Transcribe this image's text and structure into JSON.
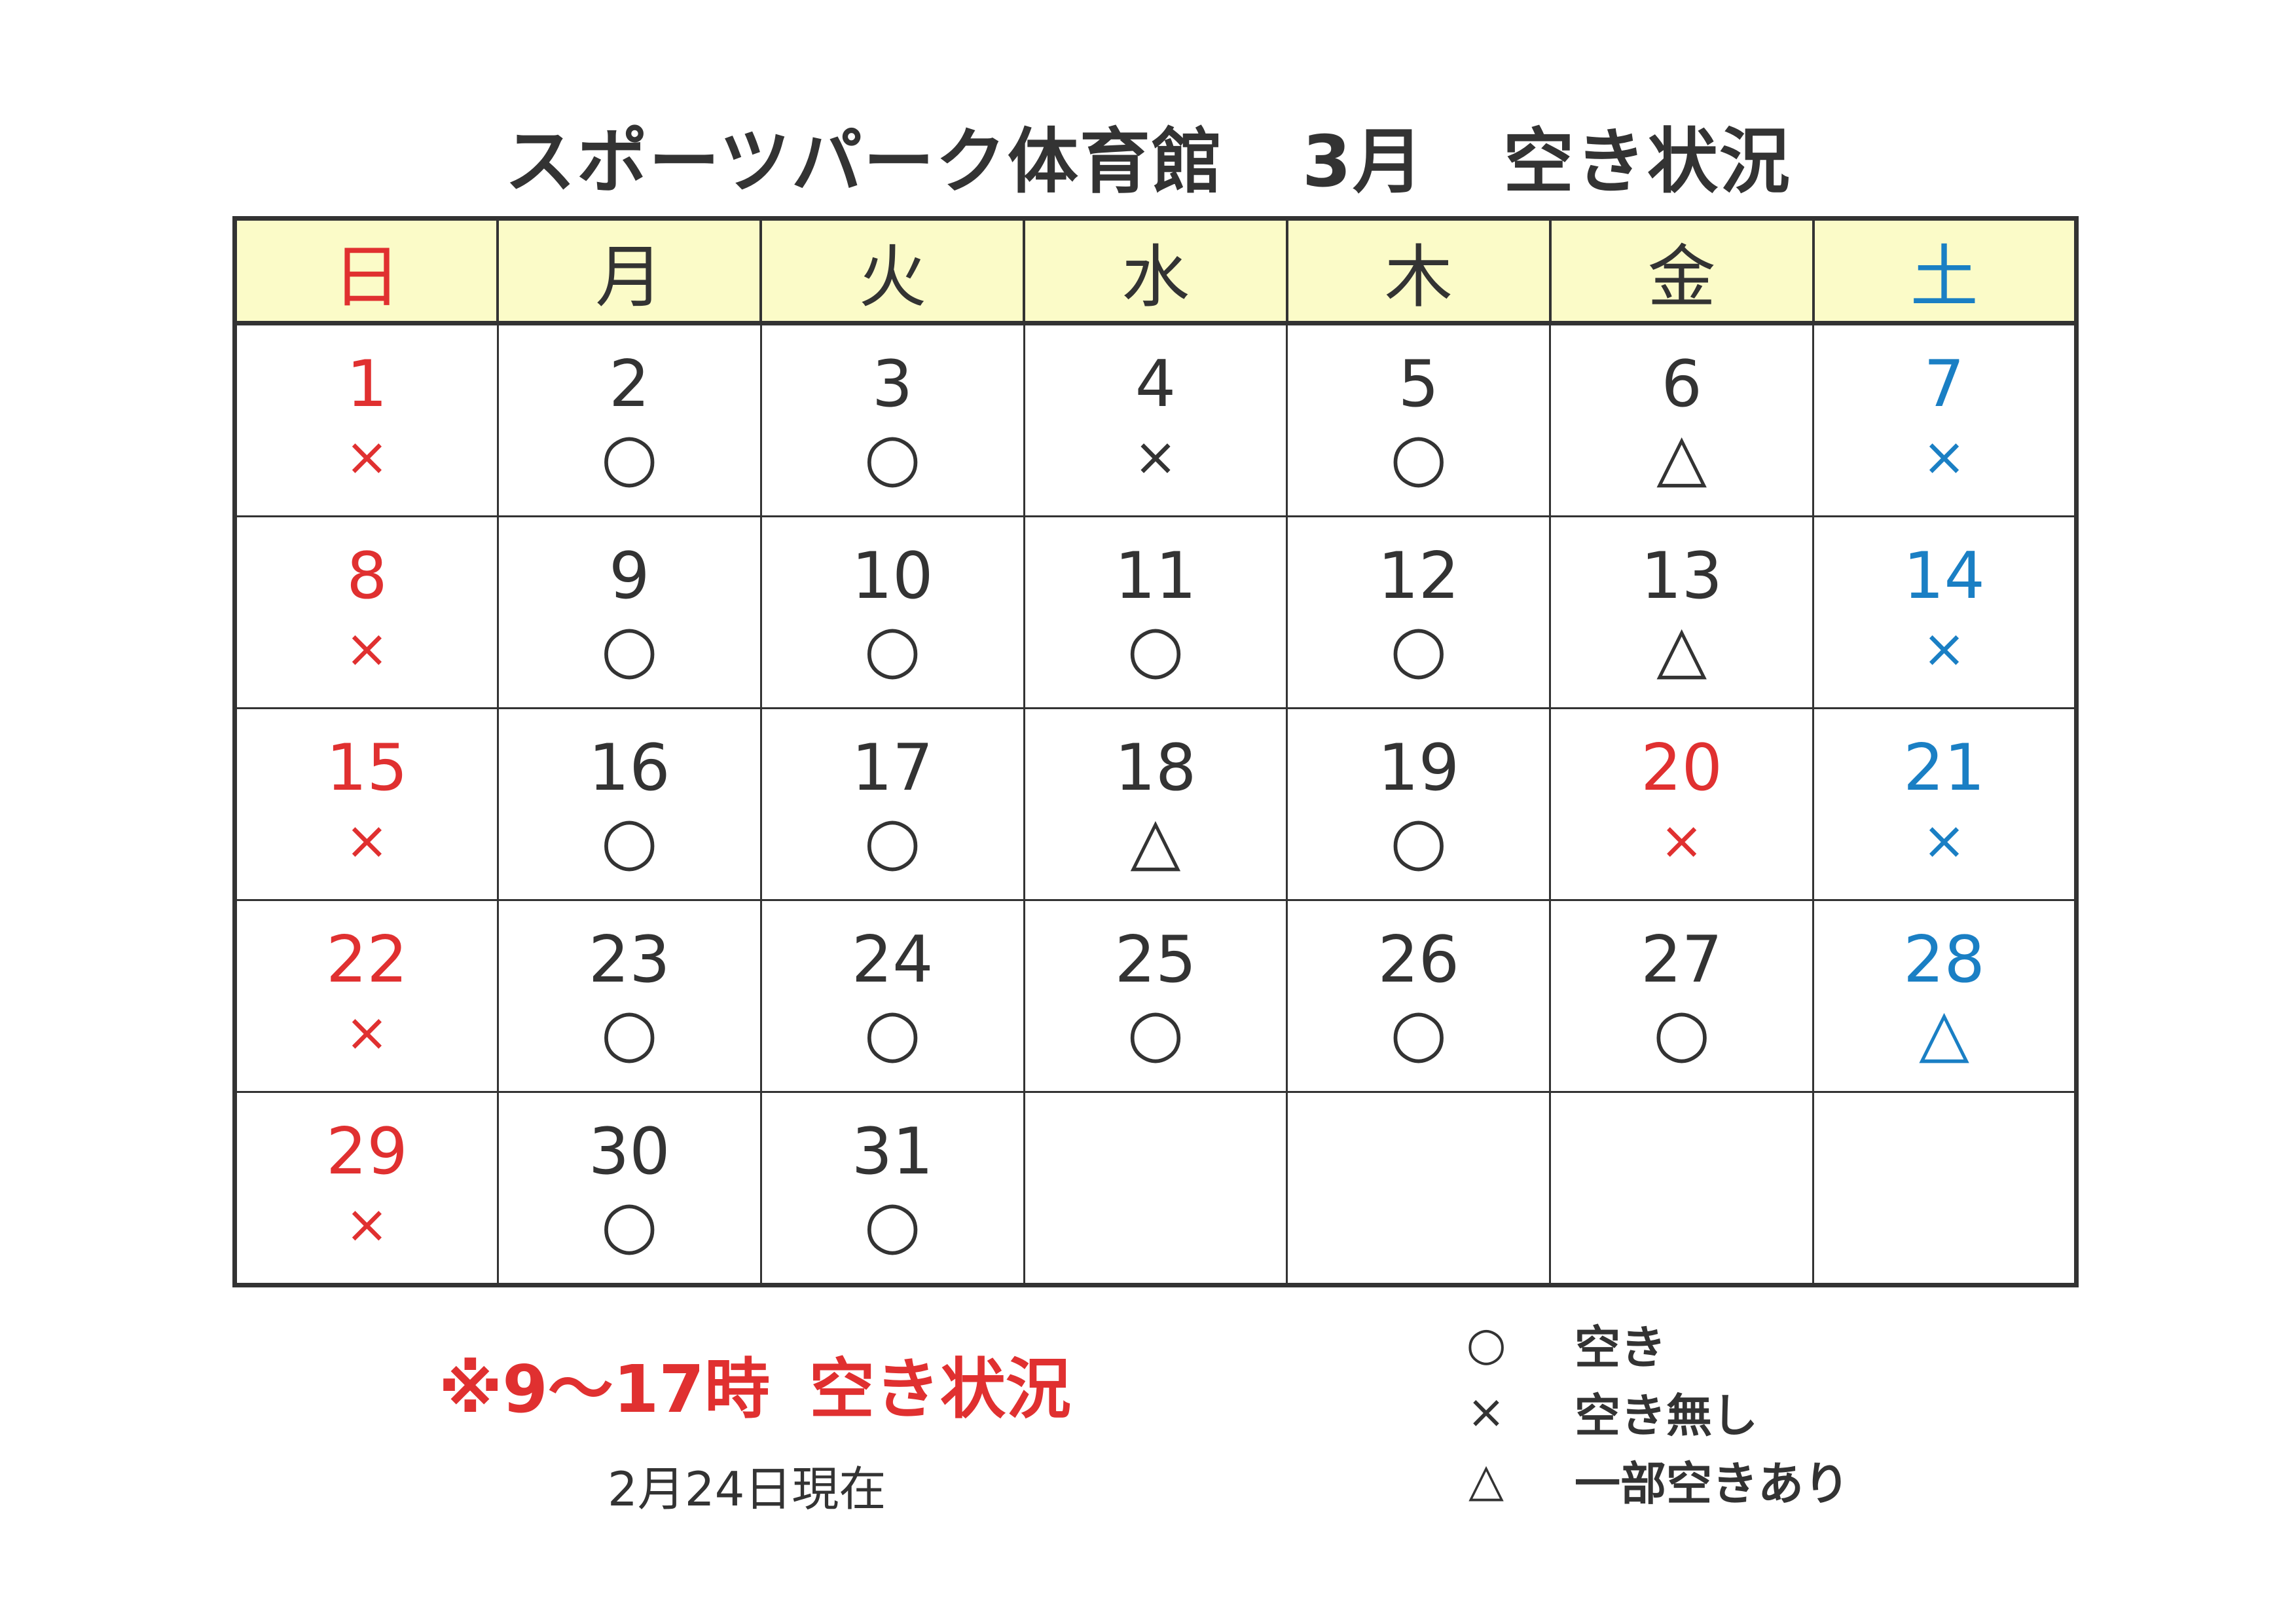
{
  "title": {
    "facility": "スポーツパーク体育館",
    "month": "3月",
    "label": "空き状況"
  },
  "colors": {
    "sunday": "#e03030",
    "saturday": "#1a7fc4",
    "weekday": "#333333",
    "header_bg": "#fbfbc8"
  },
  "weekdays": [
    {
      "label": "日",
      "color": "#e03030"
    },
    {
      "label": "月",
      "color": "#333333"
    },
    {
      "label": "火",
      "color": "#333333"
    },
    {
      "label": "水",
      "color": "#333333"
    },
    {
      "label": "木",
      "color": "#333333"
    },
    {
      "label": "金",
      "color": "#333333"
    },
    {
      "label": "土",
      "color": "#1a7fc4"
    }
  ],
  "weeks": [
    [
      {
        "day": "1",
        "mark": "×",
        "color": "#e03030"
      },
      {
        "day": "2",
        "mark": "○"
      },
      {
        "day": "3",
        "mark": "○"
      },
      {
        "day": "4",
        "mark": "×"
      },
      {
        "day": "5",
        "mark": "○"
      },
      {
        "day": "6",
        "mark": "△"
      },
      {
        "day": "7",
        "mark": "×",
        "color": "#1a7fc4"
      }
    ],
    [
      {
        "day": "8",
        "mark": "×",
        "color": "#e03030"
      },
      {
        "day": "9",
        "mark": "○"
      },
      {
        "day": "10",
        "mark": "○"
      },
      {
        "day": "11",
        "mark": "○"
      },
      {
        "day": "12",
        "mark": "○"
      },
      {
        "day": "13",
        "mark": "△"
      },
      {
        "day": "14",
        "mark": "×",
        "color": "#1a7fc4"
      }
    ],
    [
      {
        "day": "15",
        "mark": "×",
        "color": "#e03030"
      },
      {
        "day": "16",
        "mark": "○"
      },
      {
        "day": "17",
        "mark": "○"
      },
      {
        "day": "18",
        "mark": "△"
      },
      {
        "day": "19",
        "mark": "○"
      },
      {
        "day": "20",
        "mark": "×",
        "color": "#e03030"
      },
      {
        "day": "21",
        "mark": "×",
        "color": "#1a7fc4"
      }
    ],
    [
      {
        "day": "22",
        "mark": "×",
        "color": "#e03030"
      },
      {
        "day": "23",
        "mark": "○"
      },
      {
        "day": "24",
        "mark": "○"
      },
      {
        "day": "25",
        "mark": "○"
      },
      {
        "day": "26",
        "mark": "○"
      },
      {
        "day": "27",
        "mark": "○"
      },
      {
        "day": "28",
        "mark": "△",
        "color": "#1a7fc4"
      }
    ],
    [
      {
        "day": "29",
        "mark": "×",
        "color": "#e03030"
      },
      {
        "day": "30",
        "mark": "○"
      },
      {
        "day": "31",
        "mark": "○"
      },
      {},
      {},
      {},
      {}
    ]
  ],
  "note": {
    "hours": "※9～17時",
    "label": "空き状況"
  },
  "as_of": "2月24日現在",
  "legend": [
    {
      "symbol": "○",
      "label": "空き"
    },
    {
      "symbol": "×",
      "label": "空き無し"
    },
    {
      "symbol": "△",
      "label": "一部空きあり"
    }
  ]
}
